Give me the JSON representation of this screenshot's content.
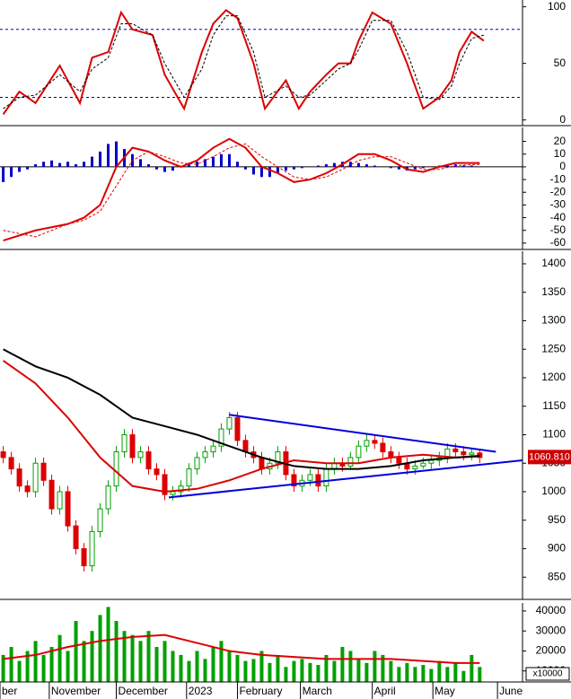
{
  "chart_data": [
    {
      "type": "line",
      "xlim": [
        -0.4,
        64.3
      ],
      "ylim": [
        -5,
        106
      ],
      "yticks": [
        0,
        50,
        100
      ],
      "levels": [
        80,
        20
      ],
      "level_color": "#0000aa",
      "series": [
        {
          "color": "#dd0000",
          "x": [
            0,
            2,
            4,
            7,
            9.5,
            11,
            13,
            14.6,
            16,
            18.5,
            20,
            22.4,
            24.6,
            26,
            27.6,
            29,
            31,
            32.4,
            35,
            36.6,
            38,
            40,
            41.5,
            43,
            44,
            45.7,
            48,
            50,
            52,
            54,
            55.5,
            56.5,
            58,
            59.5
          ],
          "values": [
            5,
            25,
            15,
            48,
            15,
            55,
            60,
            95,
            80,
            75,
            40,
            10,
            60,
            85,
            97,
            90,
            50,
            10,
            35,
            10,
            25,
            40,
            50,
            50,
            70,
            95,
            85,
            50,
            10,
            20,
            35,
            60,
            78,
            70
          ]
        },
        {
          "color": "#000000",
          "dashed": true,
          "x": [
            0,
            2,
            4,
            7,
            9.5,
            11,
            13,
            14.6,
            16,
            18.5,
            20,
            22.4,
            24.6,
            26,
            27.6,
            29,
            31,
            32.4,
            35,
            36.6,
            38,
            40,
            41.5,
            43,
            44,
            45.7,
            48,
            50,
            52,
            54,
            55.5,
            56.5,
            58,
            59.5
          ],
          "values": [
            10,
            20,
            22,
            40,
            25,
            45,
            55,
            85,
            85,
            75,
            50,
            20,
            45,
            75,
            92,
            92,
            60,
            20,
            30,
            20,
            22,
            35,
            45,
            50,
            62,
            88,
            88,
            60,
            20,
            18,
            30,
            50,
            72,
            75
          ]
        }
      ]
    },
    {
      "type": "macd",
      "xlim": [
        -0.4,
        64.3
      ],
      "ylim": [
        -65,
        31
      ],
      "yticks": [
        20,
        10,
        0,
        -10,
        -20,
        -30,
        -40,
        -50,
        -60
      ],
      "bar_color": "#0000cc",
      "bars": [
        -12,
        -8,
        -4,
        -2,
        2,
        4,
        5,
        3,
        4,
        2,
        4,
        8,
        12,
        18,
        20,
        14,
        10,
        6,
        2,
        -2,
        -4,
        -3,
        0,
        2,
        4,
        6,
        8,
        10,
        10,
        4,
        -2,
        -6,
        -8,
        -8,
        -5,
        -3,
        -2,
        -1,
        0,
        1,
        2,
        3,
        4,
        4,
        3,
        2,
        1,
        0,
        -1,
        -2,
        -3,
        -2,
        -1,
        0,
        1,
        2,
        2,
        1,
        1,
        0
      ],
      "series": [
        {
          "color": "#dd0000",
          "x": [
            0,
            4,
            8,
            10,
            12,
            14,
            16,
            18,
            20,
            22,
            24,
            26,
            28,
            30,
            32,
            34,
            36,
            38,
            40,
            42,
            44,
            46,
            48,
            50,
            52,
            54,
            56,
            59
          ],
          "values": [
            -58,
            -50,
            -45,
            -40,
            -30,
            0,
            15,
            12,
            5,
            0,
            5,
            15,
            22,
            15,
            0,
            -5,
            -12,
            -10,
            -5,
            2,
            10,
            10,
            5,
            -2,
            -4,
            0,
            3,
            3
          ]
        },
        {
          "color": "#dd0000",
          "dashed": true,
          "x": [
            0,
            4,
            8,
            10,
            12,
            14,
            16,
            18,
            20,
            22,
            24,
            26,
            28,
            30,
            32,
            34,
            36,
            38,
            40,
            42,
            44,
            46,
            48,
            50,
            52,
            54,
            56,
            59
          ],
          "values": [
            -50,
            -55,
            -45,
            -42,
            -35,
            -15,
            5,
            12,
            8,
            3,
            2,
            8,
            15,
            18,
            8,
            0,
            -8,
            -10,
            -8,
            -2,
            5,
            8,
            8,
            3,
            -2,
            -2,
            1,
            2
          ]
        }
      ]
    },
    {
      "type": "candlestick",
      "xlim": [
        -0.4,
        64.3
      ],
      "ylim": [
        811,
        1422
      ],
      "yticks": [
        850,
        900,
        950,
        1000,
        1050,
        1100,
        1150,
        1200,
        1250,
        1300,
        1350,
        1400
      ],
      "up_color": "#00a000",
      "down_color": "#dd0000",
      "open": [
        1070,
        1060,
        1040,
        1010,
        1000,
        1050,
        1020,
        970,
        1000,
        940,
        900,
        870,
        930,
        970,
        1010,
        1070,
        1100,
        1060,
        1070,
        1040,
        1030,
        995,
        1000,
        1010,
        1040,
        1060,
        1070,
        1080,
        1110,
        1130,
        1090,
        1070,
        1060,
        1040,
        1050,
        1070,
        1030,
        1010,
        1020,
        1030,
        1010,
        1040,
        1050,
        1045,
        1060,
        1080,
        1090,
        1085,
        1070,
        1060,
        1050,
        1040,
        1045,
        1050,
        1055,
        1060,
        1075,
        1070,
        1065,
        1068
      ],
      "high": [
        1080,
        1070,
        1050,
        1020,
        1060,
        1060,
        1030,
        1010,
        1010,
        950,
        910,
        940,
        980,
        1020,
        1080,
        1110,
        1110,
        1080,
        1080,
        1050,
        1040,
        1010,
        1020,
        1050,
        1070,
        1080,
        1090,
        1120,
        1140,
        1140,
        1100,
        1080,
        1070,
        1060,
        1080,
        1080,
        1040,
        1030,
        1040,
        1040,
        1050,
        1060,
        1060,
        1070,
        1090,
        1100,
        1100,
        1095,
        1080,
        1070,
        1060,
        1055,
        1060,
        1065,
        1070,
        1085,
        1085,
        1080,
        1075,
        1075
      ],
      "low": [
        1050,
        1030,
        1000,
        990,
        990,
        1010,
        960,
        960,
        930,
        890,
        860,
        860,
        920,
        960,
        1000,
        1060,
        1050,
        1050,
        1030,
        1020,
        985,
        985,
        990,
        1000,
        1030,
        1050,
        1060,
        1070,
        1100,
        1080,
        1060,
        1050,
        1030,
        1030,
        1040,
        1020,
        1000,
        1000,
        1010,
        1000,
        1000,
        1030,
        1035,
        1040,
        1050,
        1070,
        1075,
        1060,
        1050,
        1040,
        1030,
        1030,
        1040,
        1040,
        1045,
        1050,
        1060,
        1055,
        1055,
        1050
      ],
      "close": [
        1060,
        1040,
        1010,
        1000,
        1050,
        1020,
        970,
        1000,
        940,
        900,
        870,
        930,
        970,
        1010,
        1070,
        1100,
        1060,
        1070,
        1040,
        1030,
        995,
        1000,
        1010,
        1040,
        1060,
        1070,
        1080,
        1110,
        1130,
        1090,
        1070,
        1060,
        1040,
        1050,
        1070,
        1030,
        1010,
        1020,
        1030,
        1010,
        1040,
        1050,
        1045,
        1060,
        1080,
        1090,
        1085,
        1070,
        1060,
        1050,
        1040,
        1045,
        1050,
        1055,
        1060,
        1075,
        1070,
        1065,
        1068,
        1060
      ],
      "series": [
        {
          "color": "#dd0000",
          "x": [
            0,
            4,
            8,
            12,
            16,
            20,
            24,
            28,
            32,
            36,
            40,
            44,
            48,
            52,
            56,
            59
          ],
          "values": [
            1230,
            1190,
            1130,
            1060,
            1010,
            1000,
            1005,
            1020,
            1040,
            1055,
            1050,
            1050,
            1060,
            1065,
            1060,
            1062
          ]
        },
        {
          "color": "#000000",
          "x": [
            0,
            4,
            8,
            12,
            16,
            20,
            24,
            28,
            32,
            36,
            40,
            44,
            48,
            52,
            56,
            59
          ],
          "values": [
            1250,
            1220,
            1200,
            1170,
            1130,
            1115,
            1100,
            1080,
            1060,
            1045,
            1040,
            1040,
            1045,
            1055,
            1060,
            1063
          ]
        }
      ],
      "trendlines": [
        {
          "color": "#0000dd",
          "x": [
            28,
            61
          ],
          "values": [
            1135,
            1070
          ]
        },
        {
          "color": "#0000dd",
          "x": [
            20.5,
            64.3
          ],
          "values": [
            990,
            1055
          ]
        }
      ],
      "last_price": {
        "value": 1060.81,
        "label": "1060.810"
      }
    },
    {
      "type": "volume",
      "xlim": [
        -0.4,
        64.3
      ],
      "ylim": [
        4500,
        44000
      ],
      "yticks": [
        10000,
        20000,
        30000,
        40000
      ],
      "color": "#00a000",
      "unit_label": "x10000",
      "values": [
        18000,
        22000,
        15000,
        20000,
        25000,
        18000,
        22000,
        28000,
        20000,
        35000,
        25000,
        30000,
        38000,
        42000,
        35000,
        30000,
        28000,
        25000,
        30000,
        22000,
        25000,
        20000,
        18000,
        15000,
        20000,
        16000,
        22000,
        25000,
        20000,
        18000,
        15000,
        16000,
        20000,
        14000,
        18000,
        12000,
        15000,
        16000,
        14000,
        13000,
        18000,
        15000,
        22000,
        20000,
        16000,
        14000,
        20000,
        18000,
        15000,
        12000,
        14000,
        12000,
        13000,
        11000,
        15000,
        12000,
        14000,
        10000,
        18000,
        12000
      ],
      "series": [
        {
          "color": "#dd0000",
          "x": [
            0,
            4,
            8,
            12,
            16,
            20,
            24,
            28,
            32,
            36,
            40,
            44,
            48,
            52,
            56,
            59
          ],
          "values": [
            16000,
            18000,
            22000,
            25000,
            27000,
            28000,
            24000,
            20000,
            18000,
            17000,
            16000,
            16000,
            16000,
            15000,
            14000,
            14000
          ]
        }
      ],
      "xticks": [
        {
          "value": -0.4,
          "label": "ber"
        },
        {
          "value": 5.7,
          "label": "November"
        },
        {
          "value": 14,
          "label": "December"
        },
        {
          "value": 22.7,
          "label": "2023"
        },
        {
          "value": 29,
          "label": "February"
        },
        {
          "value": 36.8,
          "label": "March"
        },
        {
          "value": 45.7,
          "label": "April"
        },
        {
          "value": 53.2,
          "label": "May"
        },
        {
          "value": 61.2,
          "label": "June"
        }
      ]
    }
  ]
}
